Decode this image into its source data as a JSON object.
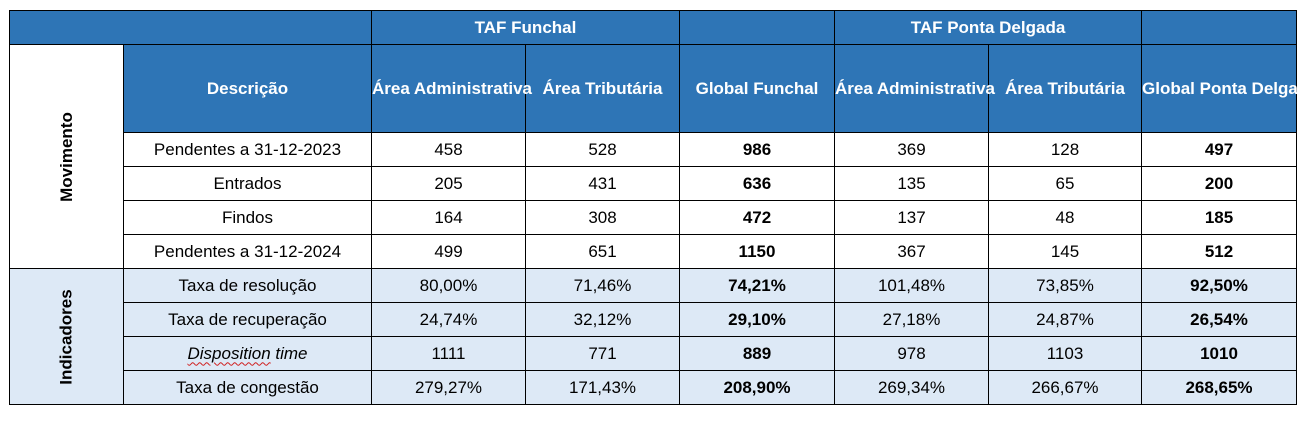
{
  "header": {
    "group1": "TAF Funchal",
    "group2": "TAF Ponta Delgada",
    "cols": [
      "Descrição",
      "Área Administrativa",
      "Área Tributária",
      "Global Funchal",
      "Área Administrativa",
      "Área Tributária",
      "Global Ponta Delgada"
    ]
  },
  "sections": {
    "movimento": "Movimento",
    "indicadores": "Indicadores"
  },
  "movimento_rows": [
    {
      "label": "Pendentes a 31-12-2023",
      "v": [
        "458",
        "528",
        "986",
        "369",
        "128",
        "497"
      ]
    },
    {
      "label": "Entrados",
      "v": [
        "205",
        "431",
        "636",
        "135",
        "65",
        "200"
      ]
    },
    {
      "label": "Findos",
      "v": [
        "164",
        "308",
        "472",
        "137",
        "48",
        "185"
      ]
    },
    {
      "label": "Pendentes a 31-12-2024",
      "v": [
        "499",
        "651",
        "1150",
        "367",
        "145",
        "512"
      ]
    }
  ],
  "indicadores_rows": [
    {
      "label": "Taxa de resolução",
      "v": [
        "80,00%",
        "71,46%",
        "74,21%",
        "101,48%",
        "73,85%",
        "92,50%"
      ]
    },
    {
      "label": "Taxa de recuperação",
      "v": [
        "24,74%",
        "32,12%",
        "29,10%",
        "27,18%",
        "24,87%",
        "26,54%"
      ]
    },
    {
      "label_a": "Disposition",
      "label_b": " time",
      "v": [
        "1111",
        "771",
        "889",
        "978",
        "1103",
        "1010"
      ]
    },
    {
      "label": "Taxa de congestão",
      "v": [
        "279,27%",
        "171,43%",
        "208,90%",
        "269,34%",
        "266,67%",
        "268,65%"
      ]
    }
  ]
}
